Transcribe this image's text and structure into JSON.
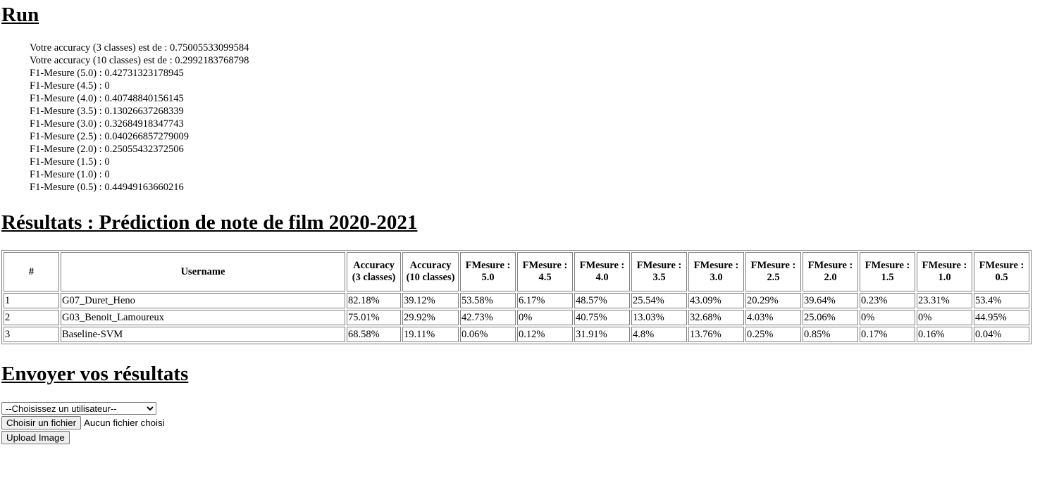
{
  "run": {
    "title": "Run",
    "lines": [
      "Votre accuracy (3 classes) est de : 0.75005533099584",
      "Votre accuracy (10 classes) est de : 0.2992183768798",
      "F1-Mesure (5.0) : 0.42731323178945",
      "F1-Mesure (4.5) : 0",
      "F1-Mesure (4.0) : 0.40748840156145",
      "F1-Mesure (3.5) : 0.13026637268339",
      "F1-Mesure (3.0) : 0.32684918347743",
      "F1-Mesure (2.5) : 0.040266857279009",
      "F1-Mesure (2.0) : 0.25055432372506",
      "F1-Mesure (1.5) : 0",
      "F1-Mesure (1.0) : 0",
      "F1-Mesure (0.5) : 0.44949163660216"
    ]
  },
  "results": {
    "title": "Résultats : Prédiction de note de film 2020-2021",
    "headers": [
      "#",
      "Username",
      "Accuracy (3 classes)",
      "Accuracy (10 classes)",
      "FMesure : 5.0",
      "FMesure : 4.5",
      "FMesure : 4.0",
      "FMesure : 3.5",
      "FMesure : 3.0",
      "FMesure : 2.5",
      "FMesure : 2.0",
      "FMesure : 1.5",
      "FMesure : 1.0",
      "FMesure : 0.5"
    ],
    "rows": [
      [
        "1",
        "G07_Duret_Heno",
        "82.18%",
        "39.12%",
        "53.58%",
        "6.17%",
        "48.57%",
        "25.54%",
        "43.09%",
        "20.29%",
        "39.64%",
        "0.23%",
        "23.31%",
        "53.4%"
      ],
      [
        "2",
        "G03_Benoit_Lamoureux",
        "75.01%",
        "29.92%",
        "42.73%",
        "0%",
        "40.75%",
        "13.03%",
        "32.68%",
        "4.03%",
        "25.06%",
        "0%",
        "0%",
        "44.95%"
      ],
      [
        "3",
        "Baseline-SVM",
        "68.58%",
        "19.11%",
        "0.06%",
        "0.12%",
        "31.91%",
        "4.8%",
        "13.76%",
        "0.25%",
        "0.85%",
        "0.17%",
        "0.16%",
        "0.04%"
      ]
    ]
  },
  "send": {
    "title": "Envoyer vos résultats",
    "select_value": "--Choisissez un utilisateur--",
    "choose_file_label": "Choisir un fichier",
    "file_status": "Aucun fichier choisi",
    "upload_label": "Upload Image"
  }
}
